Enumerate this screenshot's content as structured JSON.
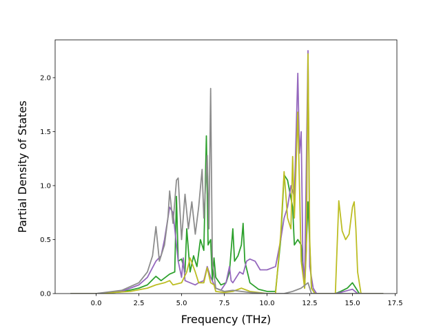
{
  "chart_data": {
    "type": "line",
    "title": "",
    "xlabel": "Frequency (THz)",
    "ylabel": "Partial Density of States",
    "xlim": [
      -2.4,
      17.6
    ],
    "ylim": [
      0.0,
      2.35
    ],
    "xticks": [
      0.0,
      2.5,
      5.0,
      7.5,
      10.0,
      12.5,
      15.0,
      17.5
    ],
    "xtick_labels": [
      "0.0",
      "2.5",
      "5.0",
      "7.5",
      "10.0",
      "12.5",
      "15.0",
      "17.5"
    ],
    "yticks": [
      0.0,
      0.5,
      1.0,
      1.5,
      2.0
    ],
    "ytick_labels": [
      "0.0",
      "0.5",
      "1.0",
      "1.5",
      "2.0"
    ],
    "grid": false,
    "legend": "none",
    "series": [
      {
        "color": "#2ca02c",
        "points": [
          [
            -1.5,
            0
          ],
          [
            0,
            0
          ],
          [
            0.5,
            0.005
          ],
          [
            1.5,
            0.015
          ],
          [
            2.5,
            0.05
          ],
          [
            3.0,
            0.08
          ],
          [
            3.5,
            0.16
          ],
          [
            3.8,
            0.12
          ],
          [
            4.3,
            0.18
          ],
          [
            4.6,
            0.2
          ],
          [
            4.7,
            0.9
          ],
          [
            4.8,
            0.3
          ],
          [
            5.0,
            0.32
          ],
          [
            5.2,
            0.2
          ],
          [
            5.3,
            0.6
          ],
          [
            5.5,
            0.2
          ],
          [
            5.7,
            0.35
          ],
          [
            5.9,
            0.25
          ],
          [
            6.1,
            0.5
          ],
          [
            6.3,
            0.4
          ],
          [
            6.45,
            1.46
          ],
          [
            6.55,
            0.45
          ],
          [
            6.7,
            0.5
          ],
          [
            6.8,
            0.12
          ],
          [
            6.9,
            0.33
          ],
          [
            7.0,
            0.15
          ],
          [
            7.3,
            0.08
          ],
          [
            7.6,
            0.1
          ],
          [
            7.8,
            0.2
          ],
          [
            8.0,
            0.6
          ],
          [
            8.1,
            0.3
          ],
          [
            8.3,
            0.35
          ],
          [
            8.5,
            0.45
          ],
          [
            8.6,
            0.65
          ],
          [
            8.7,
            0.3
          ],
          [
            9.0,
            0.1
          ],
          [
            9.5,
            0.04
          ],
          [
            10.0,
            0.02
          ],
          [
            10.5,
            0.02
          ],
          [
            10.8,
            0.5
          ],
          [
            11.0,
            1.1
          ],
          [
            11.2,
            1.05
          ],
          [
            11.5,
            0.8
          ],
          [
            11.6,
            0.45
          ],
          [
            11.8,
            0.5
          ],
          [
            12.0,
            0.45
          ],
          [
            12.2,
            0.05
          ],
          [
            12.4,
            0.85
          ],
          [
            12.6,
            0.05
          ],
          [
            12.8,
            0
          ],
          [
            14.0,
            0
          ],
          [
            14.3,
            0.02
          ],
          [
            14.7,
            0.05
          ],
          [
            15.0,
            0.1
          ],
          [
            15.2,
            0.05
          ],
          [
            15.4,
            0
          ],
          [
            16.8,
            0
          ]
        ]
      },
      {
        "color": "#9467bd",
        "points": [
          [
            -1.5,
            0
          ],
          [
            0,
            0
          ],
          [
            0.5,
            0.005
          ],
          [
            1.5,
            0.02
          ],
          [
            2.5,
            0.08
          ],
          [
            3.0,
            0.15
          ],
          [
            3.5,
            0.3
          ],
          [
            3.8,
            0.35
          ],
          [
            4.0,
            0.5
          ],
          [
            4.3,
            0.8
          ],
          [
            4.5,
            0.75
          ],
          [
            4.7,
            0.45
          ],
          [
            4.8,
            0.3
          ],
          [
            5.0,
            0.15
          ],
          [
            5.1,
            0.33
          ],
          [
            5.2,
            0.12
          ],
          [
            5.5,
            0.1
          ],
          [
            5.8,
            0.08
          ],
          [
            6.0,
            0.1
          ],
          [
            6.3,
            0.12
          ],
          [
            6.5,
            0.25
          ],
          [
            6.7,
            0.15
          ],
          [
            7.0,
            0.05
          ],
          [
            7.3,
            0.03
          ],
          [
            7.6,
            0.1
          ],
          [
            7.8,
            0.25
          ],
          [
            7.9,
            0.12
          ],
          [
            8.0,
            0.1
          ],
          [
            8.2,
            0.15
          ],
          [
            8.4,
            0.2
          ],
          [
            8.6,
            0.18
          ],
          [
            8.8,
            0.3
          ],
          [
            9.0,
            0.32
          ],
          [
            9.3,
            0.3
          ],
          [
            9.6,
            0.22
          ],
          [
            10.0,
            0.22
          ],
          [
            10.5,
            0.25
          ],
          [
            10.8,
            0.5
          ],
          [
            11.0,
            0.7
          ],
          [
            11.2,
            0.8
          ],
          [
            11.4,
            1.0
          ],
          [
            11.6,
            0.9
          ],
          [
            11.8,
            2.04
          ],
          [
            11.9,
            1.3
          ],
          [
            12.0,
            1.5
          ],
          [
            12.1,
            0.3
          ],
          [
            12.2,
            0.1
          ],
          [
            12.4,
            2.25
          ],
          [
            12.5,
            0.25
          ],
          [
            12.7,
            0.05
          ],
          [
            12.9,
            0
          ],
          [
            14.0,
            0
          ],
          [
            14.3,
            0.01
          ],
          [
            15.0,
            0.04
          ],
          [
            15.3,
            0
          ],
          [
            16.8,
            0
          ]
        ]
      },
      {
        "color": "#bcbd22",
        "points": [
          [
            -1.5,
            0
          ],
          [
            0,
            0
          ],
          [
            0.5,
            0.005
          ],
          [
            2.0,
            0.02
          ],
          [
            3.0,
            0.05
          ],
          [
            3.5,
            0.08
          ],
          [
            4.0,
            0.1
          ],
          [
            4.3,
            0.12
          ],
          [
            4.5,
            0.08
          ],
          [
            5.0,
            0.1
          ],
          [
            5.3,
            0.2
          ],
          [
            5.5,
            0.33
          ],
          [
            5.8,
            0.2
          ],
          [
            6.0,
            0.1
          ],
          [
            6.3,
            0.1
          ],
          [
            6.5,
            0.24
          ],
          [
            6.7,
            0.1
          ],
          [
            6.9,
            0.08
          ],
          [
            7.0,
            0.02
          ],
          [
            7.5,
            0.01
          ],
          [
            8.0,
            0.02
          ],
          [
            8.5,
            0.05
          ],
          [
            9.0,
            0.02
          ],
          [
            10.0,
            0
          ],
          [
            10.5,
            0
          ],
          [
            10.8,
            0.55
          ],
          [
            11.0,
            1.13
          ],
          [
            11.2,
            0.7
          ],
          [
            11.4,
            0.6
          ],
          [
            11.5,
            1.27
          ],
          [
            11.6,
            0.7
          ],
          [
            11.8,
            1.68
          ],
          [
            12.0,
            0.3
          ],
          [
            12.2,
            0.05
          ],
          [
            12.3,
            0.4
          ],
          [
            12.4,
            2.22
          ],
          [
            12.5,
            0.5
          ],
          [
            12.6,
            0.05
          ],
          [
            12.8,
            0
          ],
          [
            14.0,
            0
          ],
          [
            14.2,
            0.86
          ],
          [
            14.4,
            0.58
          ],
          [
            14.6,
            0.5
          ],
          [
            14.8,
            0.55
          ],
          [
            15.0,
            0.8
          ],
          [
            15.1,
            0.85
          ],
          [
            15.2,
            0.6
          ],
          [
            15.3,
            0.2
          ],
          [
            15.5,
            0
          ],
          [
            16.8,
            0
          ]
        ]
      },
      {
        "color": "#8c8c8c",
        "points": [
          [
            -1.5,
            0
          ],
          [
            0,
            0
          ],
          [
            0.5,
            0.01
          ],
          [
            1.5,
            0.03
          ],
          [
            2.5,
            0.1
          ],
          [
            3.0,
            0.2
          ],
          [
            3.3,
            0.35
          ],
          [
            3.5,
            0.62
          ],
          [
            3.7,
            0.3
          ],
          [
            4.0,
            0.45
          ],
          [
            4.2,
            0.7
          ],
          [
            4.3,
            0.95
          ],
          [
            4.5,
            0.65
          ],
          [
            4.7,
            1.05
          ],
          [
            4.8,
            1.07
          ],
          [
            5.0,
            0.5
          ],
          [
            5.2,
            0.92
          ],
          [
            5.4,
            0.6
          ],
          [
            5.6,
            0.85
          ],
          [
            5.8,
            0.55
          ],
          [
            6.0,
            0.8
          ],
          [
            6.2,
            1.15
          ],
          [
            6.3,
            0.7
          ],
          [
            6.5,
            1.28
          ],
          [
            6.6,
            0.6
          ],
          [
            6.7,
            1.9
          ],
          [
            6.8,
            0.3
          ],
          [
            7.0,
            0.05
          ],
          [
            7.5,
            0.02
          ],
          [
            8.0,
            0.03
          ],
          [
            8.5,
            0.02
          ],
          [
            9.0,
            0.01
          ],
          [
            10.0,
            0
          ],
          [
            11.0,
            0
          ],
          [
            11.5,
            0.02
          ],
          [
            12.0,
            0.05
          ],
          [
            12.4,
            0.1
          ],
          [
            12.6,
            0
          ],
          [
            16.8,
            0
          ]
        ]
      }
    ]
  }
}
